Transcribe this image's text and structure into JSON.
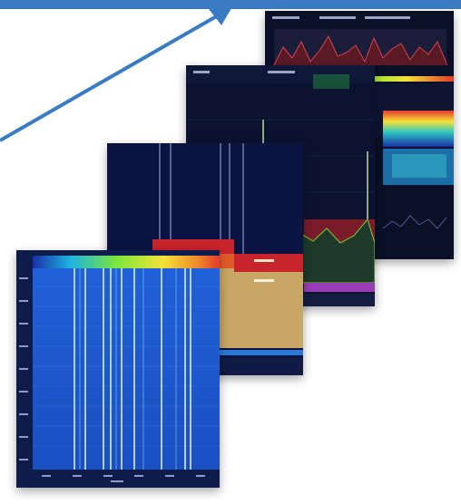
{
  "frame": {
    "accent": "#3a7cc4"
  },
  "layers": [
    {
      "name": "realtime-spectrum-analyzer",
      "kind": "dense-multi-view display"
    },
    {
      "name": "spectrum-trace",
      "kind": "spectrum with peaks"
    },
    {
      "name": "spectrum-band-overlay",
      "kind": "spectrum with occupancy bands"
    },
    {
      "name": "waterfall-spectrogram",
      "kind": "waterfall spectrogram"
    }
  ],
  "colors": {
    "waterfall_base": "#1d53c8",
    "band_red": "#c8242c",
    "band_tan": "#c8a664",
    "trace_green": "#7ecf3a",
    "panel_dark": "#0b1330"
  },
  "icons": {
    "pointer": "arrow-pointer-icon"
  }
}
